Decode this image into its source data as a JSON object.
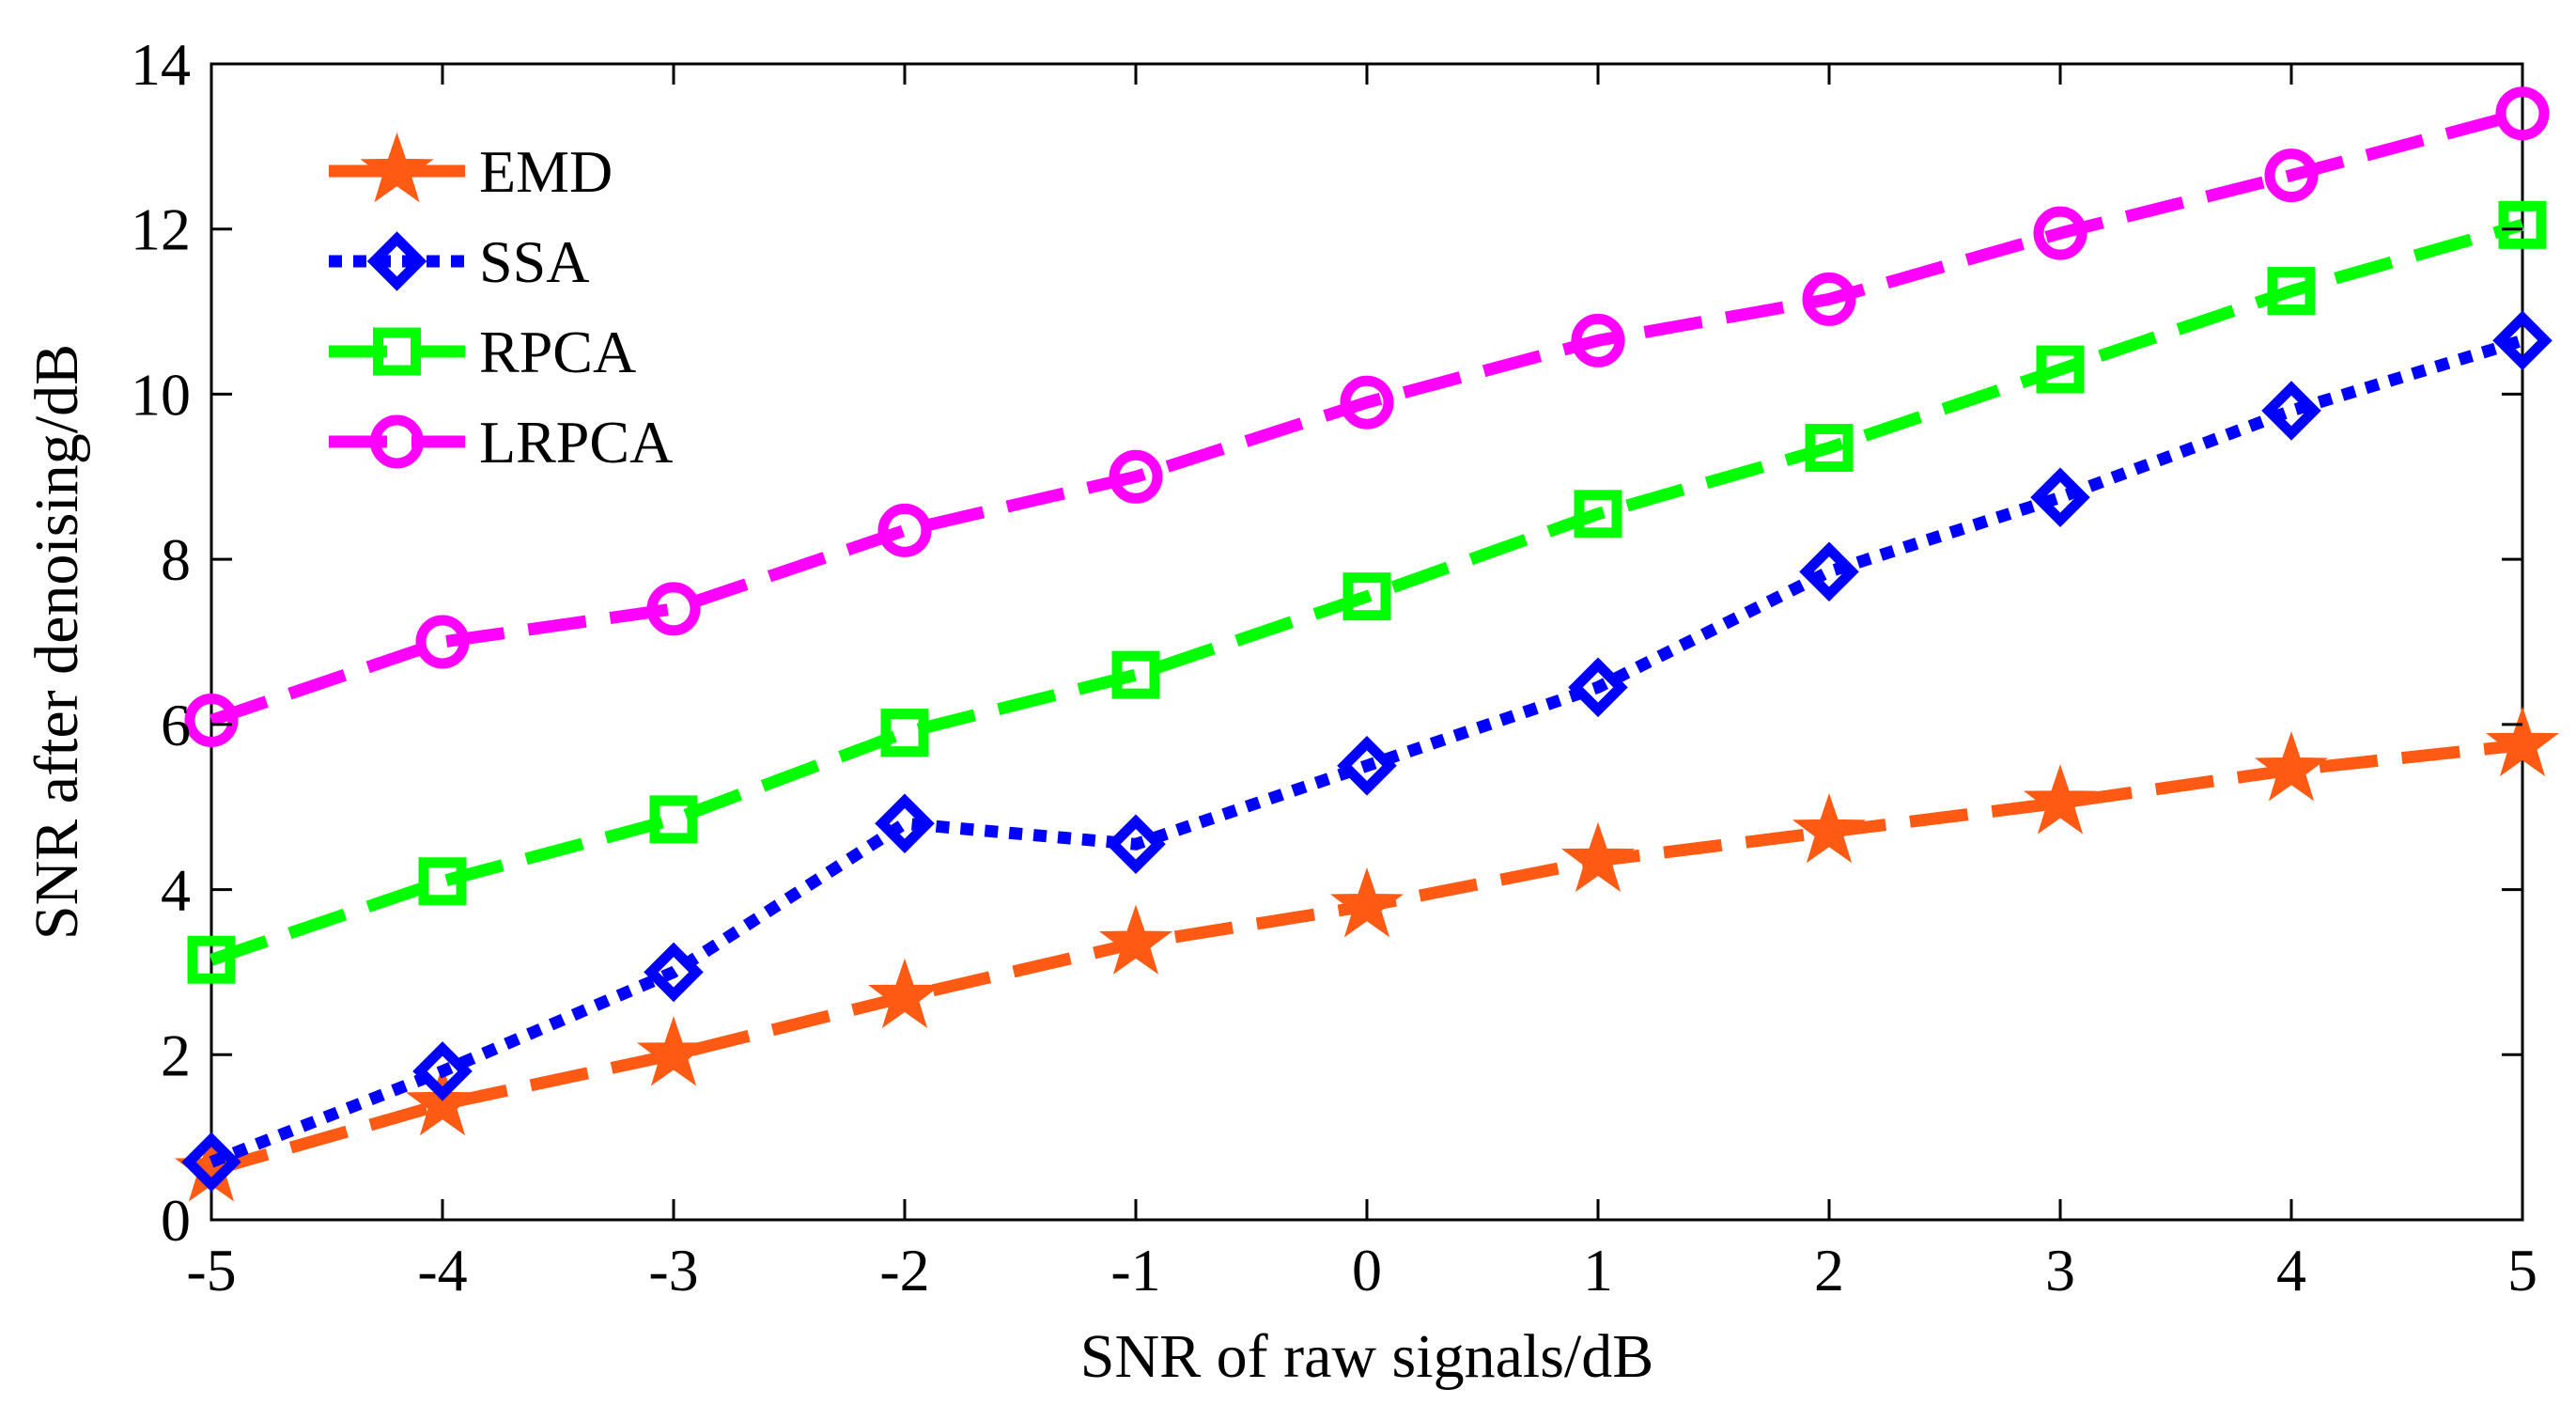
{
  "chart_data": {
    "type": "line",
    "title": "",
    "xlabel": "SNR of raw signals/dB",
    "ylabel": "SNR after denoising/dB",
    "xlim": [
      -5,
      5
    ],
    "ylim": [
      0,
      14
    ],
    "x": [
      -5,
      -4,
      -3,
      -2,
      -1,
      0,
      1,
      2,
      3,
      4,
      5
    ],
    "xticks": [
      "-5",
      "-4",
      "-3",
      "-2",
      "-1",
      "0",
      "1",
      "2",
      "3",
      "4",
      "5"
    ],
    "yticks": [
      "0",
      "2",
      "4",
      "6",
      "8",
      "10",
      "12",
      "14"
    ],
    "legend_position": "top-left",
    "grid": false,
    "series": [
      {
        "name": "EMD",
        "color": "#ff5a14",
        "marker": "star",
        "dash": "long-dash",
        "values": [
          0.6,
          1.4,
          2.0,
          2.7,
          3.35,
          3.8,
          4.35,
          4.7,
          5.05,
          5.45,
          5.75
        ]
      },
      {
        "name": "SSA",
        "color": "#0000ff",
        "marker": "diamond",
        "dash": "dotted",
        "values": [
          0.7,
          1.8,
          3.0,
          4.8,
          4.55,
          5.5,
          6.45,
          7.85,
          8.75,
          9.8,
          10.65
        ]
      },
      {
        "name": "RPCA",
        "color": "#00ff00",
        "marker": "square",
        "dash": "long-dash",
        "values": [
          3.15,
          4.1,
          4.85,
          5.9,
          6.6,
          7.55,
          8.55,
          9.35,
          10.3,
          11.25,
          12.05
        ]
      },
      {
        "name": "LRPCA",
        "color": "#ff00ff",
        "marker": "circle",
        "dash": "long-dash",
        "values": [
          6.05,
          7.0,
          7.4,
          8.35,
          9.0,
          9.9,
          10.65,
          11.15,
          11.95,
          12.65,
          13.4
        ]
      }
    ]
  }
}
